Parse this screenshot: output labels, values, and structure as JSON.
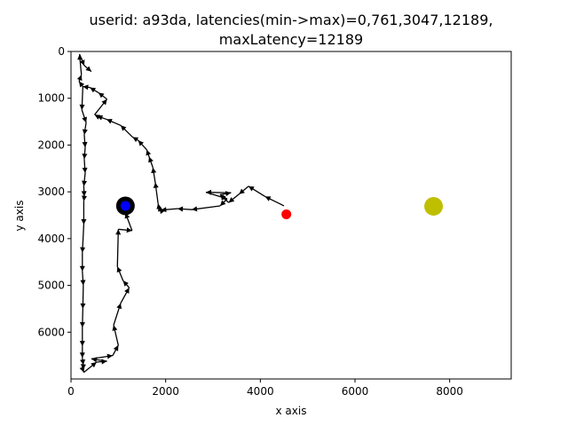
{
  "chart_data": {
    "type": "scatter",
    "title_lines": [
      "userid: a93da, latencies(min->max)=0,761,3047,12189,",
      "maxLatency=12189"
    ],
    "xlabel": "x axis",
    "ylabel": "y axis",
    "xlim": [
      0,
      9300
    ],
    "ylim": [
      7000,
      0
    ],
    "y_inverted": true,
    "xticks": [
      0,
      2000,
      4000,
      6000,
      8000
    ],
    "yticks": [
      0,
      1000,
      2000,
      3000,
      4000,
      5000,
      6000
    ],
    "grid": false,
    "trajectory_color": "#000000",
    "trajectory": [
      [
        4500,
        3300
      ],
      [
        4100,
        3100
      ],
      [
        3750,
        2880
      ],
      [
        3550,
        3050
      ],
      [
        3330,
        3230
      ],
      [
        3150,
        3060
      ],
      [
        3380,
        3020
      ],
      [
        2850,
        3010
      ],
      [
        3300,
        3150
      ],
      [
        3150,
        3300
      ],
      [
        2550,
        3380
      ],
      [
        2250,
        3360
      ],
      [
        1900,
        3390
      ],
      [
        1870,
        3350
      ],
      [
        1850,
        3300
      ],
      [
        1840,
        3250
      ],
      [
        1780,
        2800
      ],
      [
        1730,
        2480
      ],
      [
        1650,
        2250
      ],
      [
        1600,
        2100
      ],
      [
        1420,
        1900
      ],
      [
        1300,
        1830
      ],
      [
        1050,
        1580
      ],
      [
        750,
        1450
      ],
      [
        550,
        1380
      ],
      [
        500,
        1350
      ],
      [
        760,
        1020
      ],
      [
        580,
        880
      ],
      [
        400,
        770
      ],
      [
        250,
        750
      ],
      [
        230,
        1250
      ],
      [
        320,
        1520
      ],
      [
        280,
        1780
      ],
      [
        300,
        2050
      ],
      [
        280,
        2300
      ],
      [
        300,
        2600
      ],
      [
        270,
        2880
      ],
      [
        280,
        3100
      ],
      [
        270,
        3200
      ],
      [
        270,
        3700
      ],
      [
        240,
        4300
      ],
      [
        240,
        4700
      ],
      [
        260,
        5000
      ],
      [
        250,
        5500
      ],
      [
        240,
        5900
      ],
      [
        240,
        6300
      ],
      [
        240,
        6550
      ],
      [
        260,
        6700
      ],
      [
        250,
        6800
      ],
      [
        270,
        6860
      ],
      [
        540,
        6640
      ],
      [
        760,
        6620
      ],
      [
        430,
        6570
      ],
      [
        880,
        6500
      ],
      [
        1000,
        6280
      ],
      [
        900,
        5850
      ],
      [
        1050,
        5380
      ],
      [
        1230,
        5050
      ],
      [
        1100,
        4900
      ],
      [
        980,
        4600
      ],
      [
        1000,
        3800
      ],
      [
        1290,
        3830
      ],
      [
        1150,
        3450
      ],
      [
        1120,
        3330
      ]
    ],
    "upper_tail_color": "#000000",
    "upper_tail": [
      [
        250,
        750
      ],
      [
        170,
        640
      ],
      [
        220,
        500
      ],
      [
        180,
        60
      ],
      [
        280,
        300
      ],
      [
        430,
        430
      ]
    ],
    "markers": {
      "start": {
        "x": 4550,
        "y": 3480,
        "color": "#ff0000"
      },
      "target": {
        "x": 7660,
        "y": 3310,
        "color": "#bfbf00"
      },
      "end": {
        "x": 1150,
        "y": 3300,
        "color": "#0000ff",
        "ring_color": "#000000"
      }
    }
  }
}
